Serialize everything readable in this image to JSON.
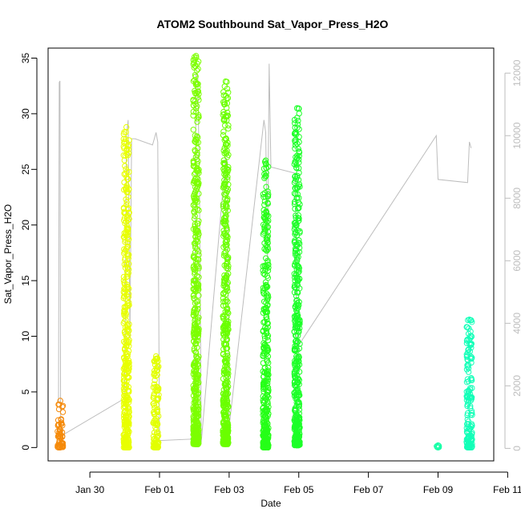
{
  "chart_data": {
    "type": "scatter",
    "title": "ATOM2 Southbound Sat_Vapor_Press_H2O",
    "xlabel": "Date",
    "ylabel": "Sat_Vapor_Press_H2O",
    "x_ticks": [
      "Jan 30",
      "Feb 01",
      "Feb 03",
      "Feb 05",
      "Feb 07",
      "Feb 09",
      "Feb 11"
    ],
    "y_ticks": [
      "0",
      "5",
      "10",
      "15",
      "20",
      "25",
      "30",
      "35"
    ],
    "y2_ticks": [
      "0",
      "2000",
      "4000",
      "6000",
      "8000",
      "10000",
      "12000"
    ],
    "ylim": [
      0,
      35
    ],
    "y2lim": [
      0,
      12000
    ],
    "grid": false,
    "series": [
      {
        "color": "#f58a0a",
        "x": 29.15,
        "ymin": 0.0,
        "ymax": 4.2
      },
      {
        "color": "#e8ff00",
        "x": 31.05,
        "ymin": 0.0,
        "ymax": 28.8
      },
      {
        "color": "#e2ff00",
        "x": 31.9,
        "ymin": 0.0,
        "ymax": 8.2
      },
      {
        "color": "#7cff00",
        "x": 33.05,
        "ymin": 0.3,
        "ymax": 35.2
      },
      {
        "color": "#6aff00",
        "x": 33.9,
        "ymin": 0.3,
        "ymax": 32.9
      },
      {
        "color": "#26ff18",
        "x": 35.05,
        "ymin": 0.0,
        "ymax": 25.8
      },
      {
        "color": "#1cff28",
        "x": 35.95,
        "ymin": 0.2,
        "ymax": 30.5
      },
      {
        "color": "#19ffa8",
        "x": 40.0,
        "ymin": 0.0,
        "ymax": 0.2
      },
      {
        "color": "#13ffb8",
        "x": 40.9,
        "ymin": 0.0,
        "ymax": 11.5
      }
    ],
    "secondary_line": {
      "color": "#bdbdbd",
      "x": [
        29.1,
        29.12,
        29.14,
        29.16,
        29.18,
        31.0,
        31.05,
        31.1,
        31.15,
        31.2,
        31.3,
        31.8,
        31.85,
        31.9,
        31.95,
        32.0,
        33.0,
        33.05,
        33.1,
        33.15,
        33.2,
        33.9,
        33.95,
        34.0,
        35.0,
        35.05,
        35.1,
        35.15,
        35.2,
        35.9,
        35.95,
        36.0,
        39.95,
        40.0,
        40.85,
        40.9,
        40.95
      ],
      "y": [
        1500,
        11700,
        11750,
        1100,
        400,
        1600,
        10000,
        10500,
        3500,
        9900,
        9900,
        9700,
        9900,
        10100,
        9800,
        250,
        300,
        12000,
        11900,
        8000,
        200,
        9300,
        9200,
        700,
        10500,
        10100,
        6000,
        12300,
        9000,
        8800,
        2000,
        3300,
        10000,
        8600,
        8500,
        9800,
        9600
      ]
    }
  }
}
